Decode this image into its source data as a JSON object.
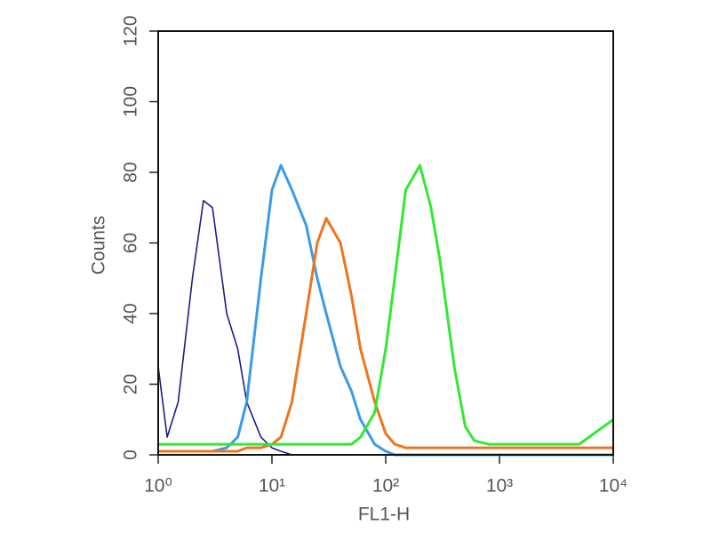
{
  "chart_data": {
    "type": "line",
    "xlabel": "FL1-H",
    "ylabel": "Counts",
    "xscale": "log",
    "x": [
      1,
      1.2,
      1.5,
      2,
      2.5,
      3,
      4,
      5,
      6,
      8,
      10,
      12,
      15,
      20,
      25,
      30,
      40,
      50,
      60,
      80,
      100,
      120,
      150,
      200,
      250,
      300,
      400,
      500,
      600,
      800,
      1000,
      2000,
      5000,
      10000
    ],
    "series": [
      {
        "color": "#1c1c8a",
        "values": [
          25,
          5,
          15,
          50,
          72,
          70,
          40,
          30,
          15,
          5,
          2,
          1,
          0,
          0,
          0,
          0,
          0,
          0,
          0,
          0,
          0,
          0,
          0,
          0,
          0,
          0,
          0,
          0,
          0,
          0,
          0,
          0,
          0,
          0
        ]
      },
      {
        "color": "#3a9be8",
        "values": [
          1,
          1,
          1,
          1,
          1,
          1,
          2,
          5,
          15,
          50,
          75,
          82,
          75,
          65,
          50,
          40,
          25,
          18,
          10,
          3,
          1,
          0,
          0,
          0,
          0,
          0,
          0,
          0,
          0,
          0,
          0,
          0,
          0,
          0
        ]
      },
      {
        "color": "#ee7420",
        "values": [
          1,
          1,
          1,
          1,
          1,
          1,
          1,
          1,
          2,
          2,
          3,
          5,
          15,
          40,
          60,
          67,
          60,
          45,
          30,
          15,
          6,
          3,
          2,
          2,
          2,
          2,
          2,
          2,
          2,
          2,
          2,
          2,
          2,
          2
        ]
      },
      {
        "color": "#33e833",
        "values": [
          3,
          3,
          3,
          3,
          3,
          3,
          3,
          3,
          3,
          3,
          3,
          3,
          3,
          3,
          3,
          3,
          3,
          3,
          5,
          12,
          30,
          50,
          75,
          82,
          70,
          55,
          25,
          8,
          4,
          3,
          3,
          3,
          3,
          10
        ]
      }
    ],
    "xlim": [
      1,
      10000
    ],
    "xticks": [
      {
        "value": 1,
        "label": "10⁰"
      },
      {
        "value": 10,
        "label": "10¹"
      },
      {
        "value": 100,
        "label": "10²"
      },
      {
        "value": 1000,
        "label": "10³"
      },
      {
        "value": 10000,
        "label": "10⁴"
      }
    ],
    "ylim": [
      0,
      120
    ],
    "yticks": [
      0,
      20,
      40,
      60,
      80,
      100,
      120
    ],
    "grid": false
  }
}
